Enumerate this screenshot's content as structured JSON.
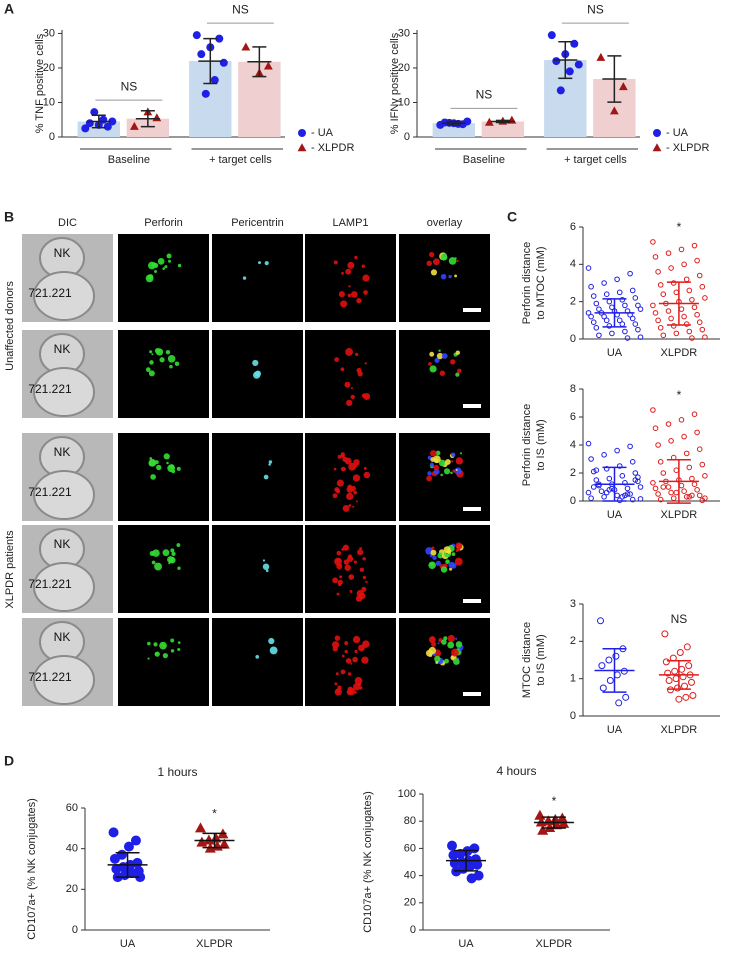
{
  "panel_labels": [
    "A",
    "B",
    "C",
    "D"
  ],
  "microscopy": {
    "columns": [
      "DIC",
      "Perforin",
      "Pericentrin",
      "LAMP1",
      "overlay"
    ],
    "groups": [
      "Unaffected donors",
      "XLPDR patients"
    ],
    "rows": [
      {
        "nk": "NK",
        "target": "721.221"
      },
      {
        "nk": "NK",
        "target": "721.221"
      },
      {
        "nk": "NK",
        "target": "721.221"
      },
      {
        "nk": "NK",
        "target": "721.221"
      },
      {
        "nk": "NK",
        "target": "721.221"
      }
    ]
  },
  "chart_data": [
    {
      "type": "bar",
      "ylabel": "% TNF positive cells",
      "categories": [
        "Baseline",
        "+ target cells"
      ],
      "ylim": [
        0,
        31
      ],
      "yticks": [
        0,
        10,
        20,
        30
      ],
      "legend": "right",
      "group_annotations": [
        "NS",
        "NS"
      ],
      "series": [
        {
          "name": "- UA",
          "color": "#1f1fe6",
          "bar_color": "#c8daee",
          "marker": "circle",
          "values": [
            4.5,
            22
          ],
          "errors": [
            1.8,
            6.5
          ],
          "points": [
            [
              2.5,
              3,
              3.5,
              4,
              4.5,
              5,
              7.2
            ],
            [
              29.5,
              28.5,
              26,
              24,
              21.5,
              16.5,
              12.5
            ]
          ]
        },
        {
          "name": "- XLPDR",
          "color": "#a31616",
          "bar_color": "#efcfcf",
          "marker": "triangle",
          "values": [
            5.3,
            21.8
          ],
          "errors": [
            2.3,
            4.3
          ],
          "points": [
            [
              3,
              5.5,
              7.2
            ],
            [
              26,
              20.5,
              18.5
            ]
          ]
        }
      ]
    },
    {
      "type": "bar",
      "ylabel": "% IFNγ positive cells",
      "categories": [
        "Baseline",
        "+ target cells"
      ],
      "ylim": [
        0,
        31
      ],
      "yticks": [
        0,
        10,
        20,
        30
      ],
      "legend": "right",
      "group_annotations": [
        "NS",
        "NS"
      ],
      "series": [
        {
          "name": "- UA",
          "color": "#1f1fe6",
          "bar_color": "#c8daee",
          "marker": "circle",
          "values": [
            4,
            22.3
          ],
          "errors": [
            0.5,
            5.3
          ],
          "points": [
            [
              3.5,
              3.7,
              4,
              4.2,
              4.5,
              3.8,
              4.1
            ],
            [
              29.5,
              27,
              24,
              22,
              21,
              19,
              13.5
            ]
          ]
        },
        {
          "name": "- XLPDR",
          "color": "#a31616",
          "bar_color": "#efcfcf",
          "marker": "triangle",
          "values": [
            4.5,
            16.8
          ],
          "errors": [
            0.3,
            6.7
          ],
          "points": [
            [
              4.2,
              4.8,
              4.5
            ],
            [
              23,
              14.5,
              7.5
            ]
          ]
        }
      ]
    },
    {
      "type": "strip",
      "ylabel": [
        "Perforin distance",
        "to MTOC (mM)"
      ],
      "categories": [
        "UA",
        "XLPDR"
      ],
      "ylim": [
        0,
        6
      ],
      "yticks": [
        0,
        2,
        4,
        6
      ],
      "annotation": "*",
      "series": [
        {
          "color": "#1f1fe6",
          "filled": false,
          "mean": 1.4,
          "sd": 0.75,
          "values": [
            3.8,
            3.5,
            3.2,
            3.0,
            2.8,
            2.6,
            2.5,
            2.4,
            2.3,
            2.2,
            2.1,
            2.0,
            1.9,
            1.8,
            1.8,
            1.7,
            1.6,
            1.6,
            1.5,
            1.5,
            1.4,
            1.4,
            1.3,
            1.3,
            1.2,
            1.2,
            1.1,
            1.0,
            1.0,
            0.9,
            0.8,
            0.8,
            0.7,
            0.6,
            0.5,
            0.4,
            0.3,
            0.2,
            0.1,
            0.05
          ]
        },
        {
          "color": "#e01b1b",
          "filled": false,
          "mean": 1.9,
          "sd": 1.15,
          "values": [
            5.2,
            5.0,
            4.8,
            4.6,
            4.4,
            4.2,
            4.0,
            3.8,
            3.6,
            3.4,
            3.2,
            3.0,
            2.9,
            2.8,
            2.6,
            2.5,
            2.4,
            2.2,
            2.1,
            2.0,
            1.9,
            1.8,
            1.7,
            1.6,
            1.5,
            1.4,
            1.3,
            1.2,
            1.1,
            1.0,
            0.9,
            0.8,
            0.7,
            0.6,
            0.5,
            0.4,
            0.3,
            0.2,
            0.1,
            0.05
          ]
        }
      ]
    },
    {
      "type": "strip",
      "ylabel": [
        "Perforin distance",
        "to IS (mM)"
      ],
      "categories": [
        "UA",
        "XLPDR"
      ],
      "ylim": [
        0,
        8
      ],
      "yticks": [
        0,
        2,
        4,
        6,
        8
      ],
      "annotation": "*",
      "series": [
        {
          "color": "#1f1fe6",
          "filled": false,
          "mean": 1.2,
          "sd": 1.2,
          "values": [
            4.1,
            3.9,
            3.6,
            3.3,
            3.0,
            2.8,
            2.5,
            2.3,
            2.1,
            2.0,
            1.8,
            1.6,
            1.5,
            1.4,
            1.3,
            1.2,
            1.1,
            1.0,
            0.9,
            0.8,
            0.7,
            0.6,
            0.5,
            0.4,
            0.3,
            0.2,
            0.1,
            0.05,
            0.6,
            1.0,
            1.5,
            0.3,
            0.8,
            2.2,
            1.7,
            0.4,
            0.9,
            1.2,
            0.15,
            0.5
          ]
        },
        {
          "color": "#e01b1b",
          "filled": false,
          "mean": 1.4,
          "sd": 1.55,
          "values": [
            6.5,
            6.2,
            5.8,
            5.5,
            5.2,
            4.9,
            4.6,
            4.3,
            4.0,
            3.7,
            3.4,
            3.1,
            2.8,
            2.6,
            2.4,
            2.2,
            2.0,
            1.8,
            1.6,
            1.5,
            1.4,
            1.3,
            1.2,
            1.1,
            1.0,
            0.9,
            0.8,
            0.7,
            0.6,
            0.5,
            0.4,
            0.3,
            0.2,
            0.1,
            0.05,
            0.3,
            0.6,
            1.0,
            0.2,
            0.4
          ]
        }
      ]
    },
    {
      "type": "strip",
      "ylabel": [
        "MTOC distance",
        "to IS (mM)"
      ],
      "categories": [
        "UA",
        "XLPDR"
      ],
      "ylim": [
        0,
        3
      ],
      "yticks": [
        0,
        1,
        2,
        3
      ],
      "annotation": "NS",
      "series": [
        {
          "color": "#1f1fe6",
          "filled": false,
          "mean": 1.22,
          "sd": 0.58,
          "values": [
            2.55,
            1.8,
            1.6,
            1.5,
            1.35,
            1.2,
            1.1,
            0.95,
            0.75,
            0.5,
            0.35
          ]
        },
        {
          "color": "#e01b1b",
          "filled": false,
          "mean": 1.1,
          "sd": 0.38,
          "values": [
            2.2,
            1.85,
            1.7,
            1.55,
            1.45,
            1.35,
            1.25,
            1.2,
            1.15,
            1.1,
            1.05,
            1.0,
            0.95,
            0.9,
            0.8,
            0.75,
            0.7,
            0.55,
            0.5,
            0.45
          ]
        }
      ]
    },
    {
      "type": "strip",
      "title": "1 hours",
      "ylabel": "CD107a+ (% NK conjugates)",
      "categories": [
        "UA",
        "XLPDR"
      ],
      "ylim": [
        0,
        60
      ],
      "yticks": [
        0,
        20,
        40,
        60
      ],
      "annotation": "*",
      "series": [
        {
          "color": "#1f1fe6",
          "filled": true,
          "marker": "circle",
          "mean": 32,
          "sd": 6,
          "values": [
            48,
            44,
            41,
            37,
            35,
            33,
            32,
            31,
            30,
            29,
            28,
            27,
            26,
            26
          ]
        },
        {
          "color": "#a31616",
          "filled": true,
          "marker": "triangle",
          "mean": 44,
          "sd": 3.5,
          "values": [
            50,
            47,
            45,
            44,
            43,
            42,
            41,
            40
          ]
        }
      ]
    },
    {
      "type": "strip",
      "title": "4 hours",
      "ylabel": "CD107a+ (% NK conjugates)",
      "categories": [
        "UA",
        "XLPDR"
      ],
      "ylim": [
        0,
        100
      ],
      "yticks": [
        0,
        20,
        40,
        60,
        80,
        100
      ],
      "annotation": "*",
      "series": [
        {
          "color": "#1f1fe6",
          "filled": true,
          "marker": "circle",
          "mean": 51,
          "sd": 7.5,
          "values": [
            62,
            60,
            58,
            56,
            55,
            52,
            51,
            50,
            49,
            48,
            47,
            45,
            43,
            40,
            38
          ]
        },
        {
          "color": "#a31616",
          "filled": true,
          "marker": "triangle",
          "mean": 79,
          "sd": 4,
          "values": [
            84,
            82,
            81,
            80,
            79,
            78,
            77,
            75,
            73
          ]
        }
      ]
    }
  ]
}
